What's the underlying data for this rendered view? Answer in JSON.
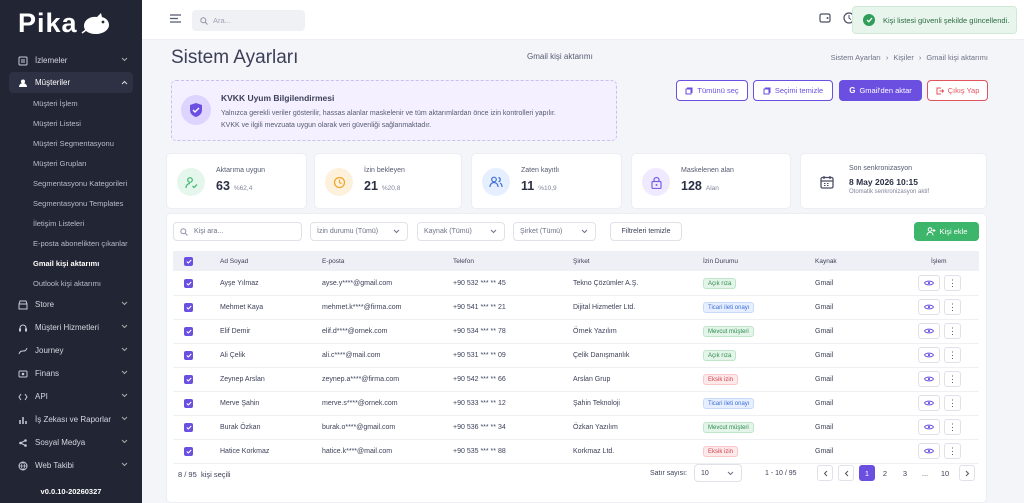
{
  "app": {
    "logo": "Pika",
    "version": "v0.0.10-20260327"
  },
  "sidebar": {
    "top": [
      {
        "label": "İzlemeler",
        "icon": "list-icon"
      },
      {
        "label": "Müşteriler",
        "icon": "users-icon"
      }
    ],
    "sub": [
      "Müşteri İşlem",
      "Müşteri Listesi",
      "Müşteri Segmentasyonu",
      "Müşteri Grupları",
      "Segmentasyonu Kategorileri",
      "Segmentasyonu Templates",
      "İletişim Listeleri",
      "E-posta abonelikten çıkanlar",
      "Gmail kişi aktarımı",
      "Outlook kişi aktarımı"
    ],
    "bottom": [
      {
        "label": "Store",
        "icon": "store-icon"
      },
      {
        "label": "Müşteri Hizmetleri",
        "icon": "headset-icon"
      },
      {
        "label": "Journey",
        "icon": "journey-icon"
      },
      {
        "label": "Finans",
        "icon": "finance-icon"
      },
      {
        "label": "API",
        "icon": "api-icon"
      },
      {
        "label": "İş Zekası ve Raporlar",
        "icon": "chart-icon"
      },
      {
        "label": "Sosyal Medya",
        "icon": "social-icon"
      },
      {
        "label": "Web Takibi",
        "icon": "web-icon"
      }
    ]
  },
  "topbar": {
    "search_placeholder": "Ara..."
  },
  "toast": {
    "message": "Kişi listesi güvenli şekilde güncellendi."
  },
  "header": {
    "title": "Sistem Ayarları",
    "subtitle": "Gmail kişi aktarımı",
    "breadcrumb": [
      "Sistem Ayarları",
      "Kişiler",
      "Gmail kişi aktarımı"
    ]
  },
  "kvkk": {
    "title": "KVKK Uyum Bilgilendirmesi",
    "line1": "Yalnızca gerekli veriler gösterilir, hassas alanlar maskelenir ve tüm aktarımlardan önce izin kontrolleri yapılır.",
    "line2": "KVKK ve ilgili mevzuata uygun olarak veri güvenliği sağlanmaktadır."
  },
  "actions": {
    "select_all": "Tümünü seç",
    "clear_selection": "Seçimi temizle",
    "import_gmail": "Gmail'den aktar",
    "logout": "Çıkış Yap"
  },
  "stats": [
    {
      "label": "Aktarıma uygun",
      "value": "63",
      "sub": "%62,4",
      "color": "#3db56a"
    },
    {
      "label": "İzin bekleyen",
      "value": "21",
      "sub": "%20,8",
      "color": "#f0a630"
    },
    {
      "label": "Zaten kayıtlı",
      "value": "11",
      "sub": "%10,9",
      "color": "#3f6fd6"
    },
    {
      "label": "Maskelenen alan",
      "value": "128",
      "sub": "Alan",
      "color": "#7a5fe8"
    },
    {
      "label": "Son senkronizasyon",
      "value": "8 May 2026 10:15",
      "sub": "Otomatik senkronizasyon aktif",
      "color": "#4a4e63"
    }
  ],
  "filters": {
    "search_placeholder": "Kişi ara...",
    "consent": "İzin durumu (Tümü)",
    "source": "Kaynak (Tümü)",
    "company": "Şirket (Tümü)",
    "clear": "Filtreleri temizle",
    "add": "Kişi ekle"
  },
  "table": {
    "headers": [
      "Ad Soyad",
      "E-posta",
      "Telefon",
      "Şirket",
      "İzin Durumu",
      "Kaynak",
      "İşlem"
    ],
    "rows": [
      {
        "name": "Ayşe Yılmaz",
        "email": "ayse.y****@gmail.com",
        "phone": "+90 532 *** ** 45",
        "company": "Tekno Çözümler A.Ş.",
        "status": "Açık rıza",
        "status_type": "green",
        "source": "Gmail"
      },
      {
        "name": "Mehmet Kaya",
        "email": "mehmet.k****@firma.com",
        "phone": "+90 541 *** ** 21",
        "company": "Dijital Hizmetler Ltd.",
        "status": "Ticari ileti onayı",
        "status_type": "blue",
        "source": "Gmail"
      },
      {
        "name": "Elif Demir",
        "email": "elif.d****@ornek.com",
        "phone": "+90 534 *** ** 78",
        "company": "Örnek Yazılım",
        "status": "Mevcut müşteri",
        "status_type": "green",
        "source": "Gmail"
      },
      {
        "name": "Ali Çelik",
        "email": "ali.c****@mail.com",
        "phone": "+90 531 *** ** 09",
        "company": "Çelik Danışmanlık",
        "status": "Açık rıza",
        "status_type": "green",
        "source": "Gmail"
      },
      {
        "name": "Zeynep Arslan",
        "email": "zeynep.a****@firma.com",
        "phone": "+90 542 *** ** 66",
        "company": "Arslan Grup",
        "status": "Eksik izin",
        "status_type": "red",
        "source": "Gmail"
      },
      {
        "name": "Merve Şahin",
        "email": "merve.s****@ornek.com",
        "phone": "+90 533 *** ** 12",
        "company": "Şahin Teknoloji",
        "status": "Ticari ileti onayı",
        "status_type": "blue",
        "source": "Gmail"
      },
      {
        "name": "Burak Özkan",
        "email": "burak.o****@gmail.com",
        "phone": "+90 536 *** ** 34",
        "company": "Özkan Yazılım",
        "status": "Mevcut müşteri",
        "status_type": "green",
        "source": "Gmail"
      },
      {
        "name": "Hatice Korkmaz",
        "email": "hatice.k****@mail.com",
        "phone": "+90 535 *** ** 88",
        "company": "Korkmaz Ltd.",
        "status": "Eksik izin",
        "status_type": "red",
        "source": "Gmail"
      }
    ]
  },
  "footer": {
    "selected": "8 / 95",
    "selected_label": "kişi seçili",
    "rows_label": "Satır sayısı:",
    "rows_value": "10",
    "range": "1 - 10 / 95",
    "pages": [
      "1",
      "2",
      "3",
      "...",
      "10"
    ]
  }
}
